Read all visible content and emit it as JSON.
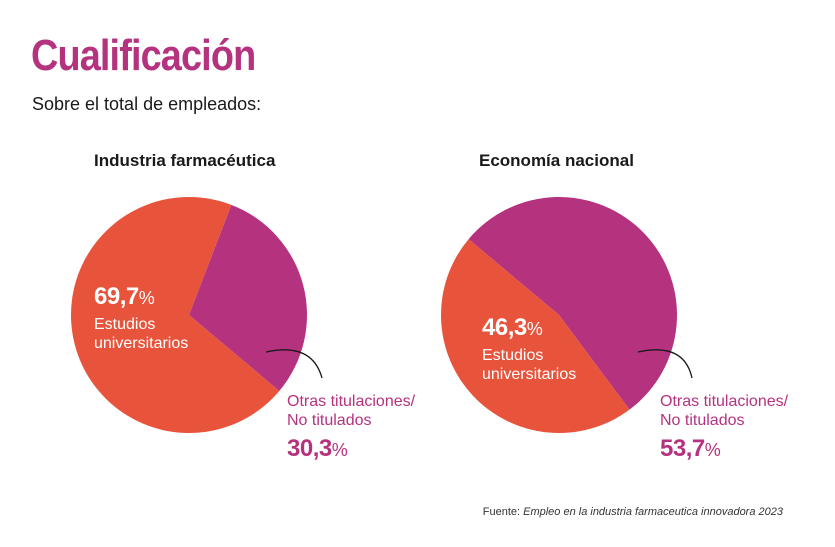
{
  "title": "Cualificación",
  "subtitle": "Sobre el total de empleados:",
  "colors": {
    "universitarios": "#e8533b",
    "otras": "#b5327f",
    "title": "#b5327f"
  },
  "chart_data": [
    {
      "type": "pie",
      "title": "Industria farmacéutica",
      "slices": [
        {
          "label": "Estudios universitarios",
          "value": 69.7,
          "display": "69,7",
          "color": "#e8533b"
        },
        {
          "label": "Otras titulaciones/ No titulados",
          "value": 30.3,
          "display": "30,3",
          "color": "#b5327f"
        }
      ]
    },
    {
      "type": "pie",
      "title": "Economía nacional",
      "slices": [
        {
          "label": "Estudios universitarios",
          "value": 46.3,
          "display": "46,3",
          "color": "#e8533b"
        },
        {
          "label": "Otras titulaciones/ No titulados",
          "value": 53.7,
          "display": "53,7",
          "color": "#b5327f"
        }
      ]
    }
  ],
  "labels": {
    "pct_sign": "%",
    "uni_line1": "Estudios",
    "uni_line2": "universitarios",
    "other_line1": "Otras titulaciones/",
    "other_line2": "No titulados"
  },
  "source": {
    "prefix": "Fuente: ",
    "text": "Empleo en la industria farmaceutica innovadora 2023"
  }
}
